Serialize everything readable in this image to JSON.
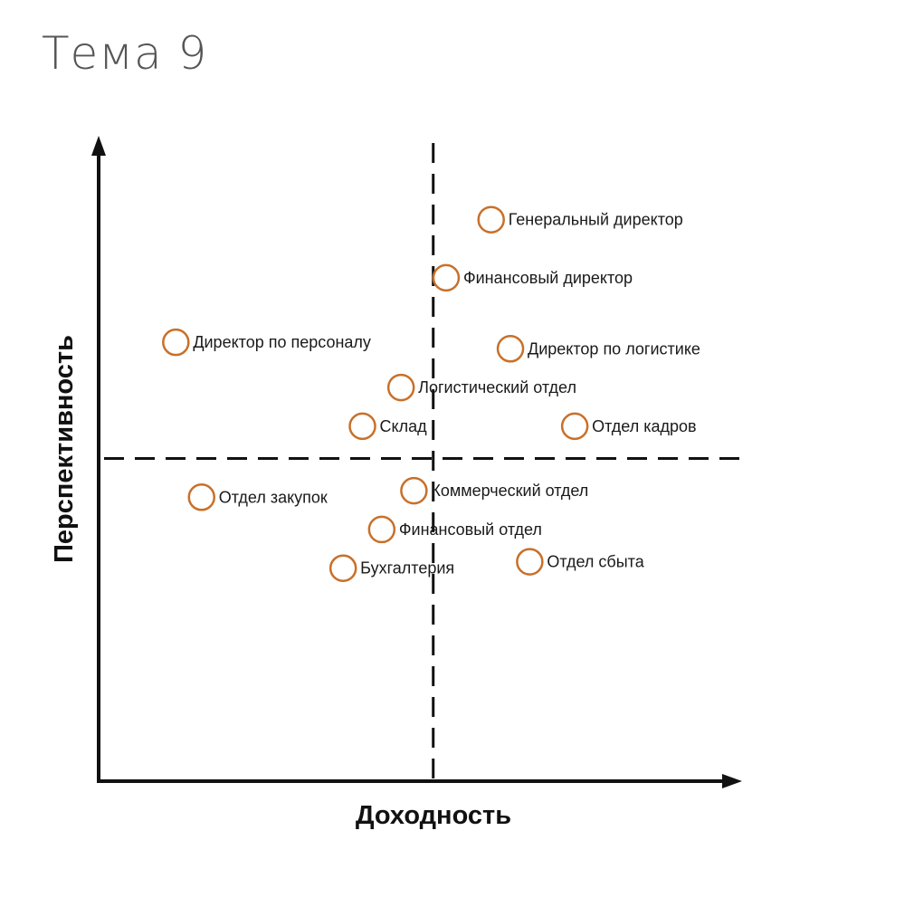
{
  "page": {
    "title": "Тема 9"
  },
  "chart_data": {
    "type": "scatter",
    "title": "",
    "xlabel": "Доходность",
    "ylabel": "Перспективность",
    "xlim": [
      0,
      100
    ],
    "ylim": [
      0,
      100
    ],
    "quadrant_dividers": {
      "x": 52,
      "y": 50
    },
    "grid": false,
    "legend": "none",
    "colors": {
      "marker": "#c8702a",
      "axis": "#111111"
    },
    "points": [
      {
        "label": "Генеральный директор",
        "x": 61,
        "y": 87
      },
      {
        "label": "Финансовый директор",
        "x": 54,
        "y": 78
      },
      {
        "label": "Директор по персоналу",
        "x": 12,
        "y": 68
      },
      {
        "label": "Директор по логистике",
        "x": 64,
        "y": 67
      },
      {
        "label": "Логистический отдел",
        "x": 47,
        "y": 61
      },
      {
        "label": "Склад",
        "x": 41,
        "y": 55
      },
      {
        "label": "Отдел кадров",
        "x": 74,
        "y": 55
      },
      {
        "label": "Коммерческий отдел",
        "x": 49,
        "y": 45
      },
      {
        "label": "Отдел закупок",
        "x": 16,
        "y": 44
      },
      {
        "label": "Финансовый отдел",
        "x": 44,
        "y": 39
      },
      {
        "label": "Отдел сбыта",
        "x": 67,
        "y": 34
      },
      {
        "label": "Бухгалтерия",
        "x": 38,
        "y": 33
      }
    ]
  }
}
